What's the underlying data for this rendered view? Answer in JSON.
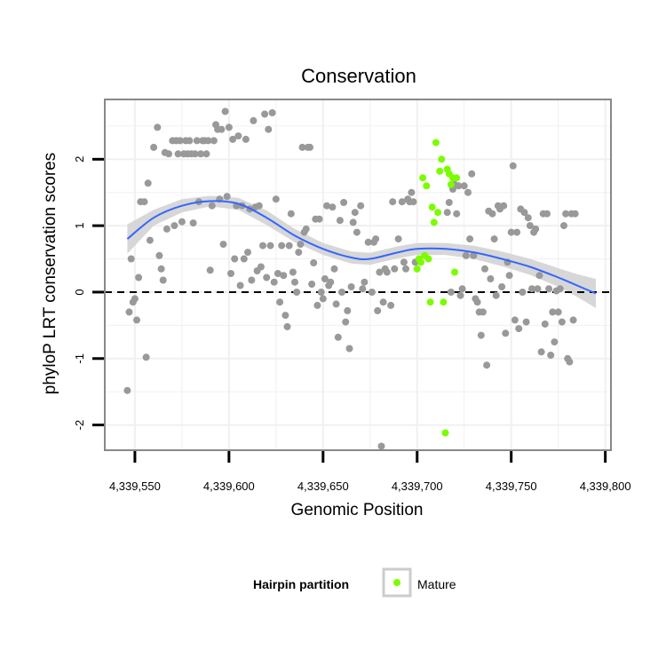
{
  "chart_data": {
    "type": "scatter",
    "title": "Conservation",
    "xlabel": "Genomic Position",
    "ylabel": "phyloP LRT conservation scores",
    "xlim": [
      4339534,
      4339803
    ],
    "ylim": [
      -2.38,
      2.9
    ],
    "x_ticks": [
      4339550,
      4339600,
      4339650,
      4339700,
      4339750,
      4339800
    ],
    "x_tick_labels": [
      "4,339,550",
      "4,339,600",
      "4,339,650",
      "4,339,700",
      "4,339,750",
      "4,339,800"
    ],
    "y_ticks": [
      -2,
      -1,
      0,
      1,
      2
    ],
    "y_tick_labels": [
      "-2",
      "-1",
      "0",
      "1",
      "2"
    ],
    "reference_line": {
      "y": 0,
      "style": "dashed",
      "color": "#000000"
    },
    "colors": {
      "other": "#999999",
      "mature": "#7cfc00",
      "smooth": "#3366ff",
      "ribbon": "#d3d3d3",
      "grid": "#f0f0f0",
      "frame": "#888888"
    },
    "legend": {
      "title": "Hairpin partition",
      "entries": [
        {
          "label": "Mature",
          "color": "#7cfc00"
        }
      ],
      "position": "bottom"
    },
    "series": [
      {
        "name": "Other",
        "color": "#999999",
        "points": [
          [
            4339546,
            -1.48
          ],
          [
            4339547,
            -0.3
          ],
          [
            4339548,
            0.5
          ],
          [
            4339549,
            -0.15
          ],
          [
            4339550,
            -0.1
          ],
          [
            4339551,
            -0.42
          ],
          [
            4339552,
            0.22
          ],
          [
            4339553,
            1.36
          ],
          [
            4339555,
            1.36
          ],
          [
            4339556,
            -0.98
          ],
          [
            4339557,
            1.64
          ],
          [
            4339558,
            0.78
          ],
          [
            4339560,
            2.18
          ],
          [
            4339562,
            2.48
          ],
          [
            4339563,
            0.55
          ],
          [
            4339564,
            0.35
          ],
          [
            4339565,
            0.18
          ],
          [
            4339566,
            2.1
          ],
          [
            4339567,
            0.95
          ],
          [
            4339568,
            2.08
          ],
          [
            4339570,
            2.28
          ],
          [
            4339571,
            1.0
          ],
          [
            4339572,
            2.28
          ],
          [
            4339573,
            2.08
          ],
          [
            4339574,
            2.28
          ],
          [
            4339575,
            1.06
          ],
          [
            4339576,
            2.08
          ],
          [
            4339577,
            2.28
          ],
          [
            4339578,
            2.08
          ],
          [
            4339579,
            2.28
          ],
          [
            4339580,
            2.08
          ],
          [
            4339581,
            1.04
          ],
          [
            4339582,
            2.08
          ],
          [
            4339583,
            2.28
          ],
          [
            4339584,
            1.36
          ],
          [
            4339585,
            2.08
          ],
          [
            4339586,
            2.28
          ],
          [
            4339587,
            2.28
          ],
          [
            4339588,
            2.08
          ],
          [
            4339589,
            2.28
          ],
          [
            4339590,
            0.33
          ],
          [
            4339591,
            1.3
          ],
          [
            4339592,
            2.28
          ],
          [
            4339593,
            2.52
          ],
          [
            4339594,
            2.45
          ],
          [
            4339595,
            1.4
          ],
          [
            4339596,
            2.45
          ],
          [
            4339597,
            0.72
          ],
          [
            4339598,
            2.72
          ],
          [
            4339599,
            1.44
          ],
          [
            4339600,
            2.48
          ],
          [
            4339601,
            0.28
          ],
          [
            4339602,
            2.3
          ],
          [
            4339603,
            0.5
          ],
          [
            4339604,
            1.3
          ],
          [
            4339605,
            2.35
          ],
          [
            4339606,
            0.1
          ],
          [
            4339607,
            1.3
          ],
          [
            4339608,
            0.5
          ],
          [
            4339609,
            2.3
          ],
          [
            4339610,
            0.6
          ],
          [
            4339611,
            1.25
          ],
          [
            4339612,
            0.18
          ],
          [
            4339613,
            2.58
          ],
          [
            4339614,
            1.28
          ],
          [
            4339615,
            0.32
          ],
          [
            4339616,
            1.3
          ],
          [
            4339617,
            0.38
          ],
          [
            4339618,
            0.7
          ],
          [
            4339619,
            2.68
          ],
          [
            4339620,
            0.22
          ],
          [
            4339621,
            2.45
          ],
          [
            4339622,
            0.7
          ],
          [
            4339623,
            2.7
          ],
          [
            4339624,
            0.15
          ],
          [
            4339625,
            1.4
          ],
          [
            4339626,
            0.28
          ],
          [
            4339627,
            -0.15
          ],
          [
            4339628,
            0.7
          ],
          [
            4339629,
            0.25
          ],
          [
            4339630,
            -0.35
          ],
          [
            4339631,
            -0.52
          ],
          [
            4339632,
            0.7
          ],
          [
            4339633,
            1.18
          ],
          [
            4339634,
            0.3
          ],
          [
            4339635,
            0.15
          ],
          [
            4339636,
            0.0
          ],
          [
            4339637,
            0.6
          ],
          [
            4339638,
            0.72
          ],
          [
            4339639,
            2.18
          ],
          [
            4339640,
            0.9
          ],
          [
            4339641,
            0.95
          ],
          [
            4339642,
            2.18
          ],
          [
            4339643,
            2.18
          ],
          [
            4339644,
            0.12
          ],
          [
            4339645,
            0.44
          ],
          [
            4339646,
            1.1
          ],
          [
            4339647,
            -0.2
          ],
          [
            4339648,
            1.1
          ],
          [
            4339649,
            0.0
          ],
          [
            4339650,
            -0.1
          ],
          [
            4339651,
            0.2
          ],
          [
            4339652,
            1.3
          ],
          [
            4339653,
            0.1
          ],
          [
            4339654,
            0.15
          ],
          [
            4339655,
            1.28
          ],
          [
            4339656,
            0.35
          ],
          [
            4339657,
            -0.18
          ],
          [
            4339658,
            -0.68
          ],
          [
            4339659,
            1.08
          ],
          [
            4339660,
            0.0
          ],
          [
            4339661,
            1.35
          ],
          [
            4339662,
            -0.45
          ],
          [
            4339663,
            -0.28
          ],
          [
            4339664,
            -0.85
          ],
          [
            4339665,
            0.08
          ],
          [
            4339666,
            1.05
          ],
          [
            4339667,
            1.2
          ],
          [
            4339668,
            0.9
          ],
          [
            4339670,
            1.3
          ],
          [
            4339671,
            0.05
          ],
          [
            4339672,
            0.15
          ],
          [
            4339674,
            0.75
          ],
          [
            4339676,
            0.0
          ],
          [
            4339677,
            0.75
          ],
          [
            4339678,
            0.8
          ],
          [
            4339679,
            -0.28
          ],
          [
            4339680,
            0.3
          ],
          [
            4339681,
            -2.32
          ],
          [
            4339682,
            -0.15
          ],
          [
            4339683,
            0.35
          ],
          [
            4339684,
            0.3
          ],
          [
            4339686,
            -0.2
          ],
          [
            4339687,
            1.36
          ],
          [
            4339688,
            0.35
          ],
          [
            4339690,
            0.8
          ],
          [
            4339692,
            1.36
          ],
          [
            4339693,
            0.45
          ],
          [
            4339694,
            0.35
          ],
          [
            4339695,
            1.4
          ],
          [
            4339696,
            1.36
          ],
          [
            4339697,
            1.5
          ],
          [
            4339698,
            1.36
          ],
          [
            4339699,
            0.45
          ],
          [
            4339716,
            1.2
          ],
          [
            4339717,
            1.35
          ],
          [
            4339718,
            0.0
          ],
          [
            4339719,
            1.55
          ],
          [
            4339720,
            1.62
          ],
          [
            4339721,
            1.18
          ],
          [
            4339722,
            1.6
          ],
          [
            4339723,
            -0.05
          ],
          [
            4339724,
            0.05
          ],
          [
            4339725,
            1.6
          ],
          [
            4339726,
            0.55
          ],
          [
            4339727,
            1.5
          ],
          [
            4339728,
            0.8
          ],
          [
            4339729,
            1.78
          ],
          [
            4339730,
            0.55
          ],
          [
            4339731,
            -0.1
          ],
          [
            4339732,
            -0.15
          ],
          [
            4339733,
            -0.3
          ],
          [
            4339734,
            -0.65
          ],
          [
            4339735,
            -0.3
          ],
          [
            4339736,
            0.35
          ],
          [
            4339737,
            -1.1
          ],
          [
            4339738,
            1.22
          ],
          [
            4339739,
            0.2
          ],
          [
            4339740,
            1.18
          ],
          [
            4339741,
            0.8
          ],
          [
            4339742,
            -0.05
          ],
          [
            4339743,
            1.3
          ],
          [
            4339744,
            1.25
          ],
          [
            4339745,
            0.08
          ],
          [
            4339746,
            1.3
          ],
          [
            4339747,
            -0.62
          ],
          [
            4339748,
            0.45
          ],
          [
            4339749,
            0.25
          ],
          [
            4339750,
            0.9
          ],
          [
            4339751,
            1.9
          ],
          [
            4339752,
            -0.42
          ],
          [
            4339753,
            0.9
          ],
          [
            4339754,
            -0.55
          ],
          [
            4339755,
            1.25
          ],
          [
            4339756,
            0.0
          ],
          [
            4339757,
            1.2
          ],
          [
            4339758,
            -0.45
          ],
          [
            4339759,
            1.12
          ],
          [
            4339760,
            1.0
          ],
          [
            4339761,
            0.05
          ],
          [
            4339762,
            0.9
          ],
          [
            4339763,
            0.95
          ],
          [
            4339764,
            0.05
          ],
          [
            4339765,
            0.25
          ],
          [
            4339766,
            -0.9
          ],
          [
            4339767,
            1.18
          ],
          [
            4339768,
            -0.48
          ],
          [
            4339769,
            1.18
          ],
          [
            4339770,
            0.05
          ],
          [
            4339771,
            -0.95
          ],
          [
            4339772,
            -0.3
          ],
          [
            4339773,
            -0.75
          ],
          [
            4339774,
            0.02
          ],
          [
            4339775,
            -0.3
          ],
          [
            4339776,
            0.05
          ],
          [
            4339777,
            -0.45
          ],
          [
            4339778,
            1.0
          ],
          [
            4339779,
            1.18
          ],
          [
            4339780,
            -1.0
          ],
          [
            4339781,
            -1.05
          ],
          [
            4339782,
            1.18
          ],
          [
            4339783,
            -0.42
          ],
          [
            4339784,
            1.18
          ]
        ]
      },
      {
        "name": "Mature",
        "color": "#7cfc00",
        "points": [
          [
            4339700,
            0.35
          ],
          [
            4339701,
            0.5
          ],
          [
            4339702,
            0.45
          ],
          [
            4339703,
            1.72
          ],
          [
            4339704,
            0.55
          ],
          [
            4339705,
            1.6
          ],
          [
            4339706,
            0.5
          ],
          [
            4339707,
            -0.15
          ],
          [
            4339708,
            1.28
          ],
          [
            4339709,
            1.05
          ],
          [
            4339710,
            2.25
          ],
          [
            4339711,
            1.2
          ],
          [
            4339712,
            1.82
          ],
          [
            4339713,
            2.0
          ],
          [
            4339714,
            -0.15
          ],
          [
            4339715,
            -2.12
          ],
          [
            4339716,
            1.85
          ],
          [
            4339717,
            1.78
          ],
          [
            4339718,
            1.62
          ],
          [
            4339719,
            1.72
          ],
          [
            4339720,
            0.3
          ],
          [
            4339721,
            1.72
          ]
        ]
      }
    ],
    "smooth_line": {
      "x": [
        4339546,
        4339560,
        4339575,
        4339590,
        4339605,
        4339620,
        4339635,
        4339650,
        4339665,
        4339675,
        4339690,
        4339700,
        4339715,
        4339730,
        4339745,
        4339760,
        4339775,
        4339785,
        4339795
      ],
      "y": [
        0.8,
        1.12,
        1.3,
        1.37,
        1.33,
        1.12,
        0.85,
        0.65,
        0.52,
        0.5,
        0.6,
        0.65,
        0.65,
        0.6,
        0.5,
        0.38,
        0.22,
        0.1,
        -0.02
      ],
      "ci_halfwidth": [
        0.22,
        0.12,
        0.1,
        0.08,
        0.09,
        0.11,
        0.1,
        0.09,
        0.09,
        0.09,
        0.09,
        0.09,
        0.09,
        0.1,
        0.11,
        0.12,
        0.14,
        0.17,
        0.22
      ]
    }
  }
}
